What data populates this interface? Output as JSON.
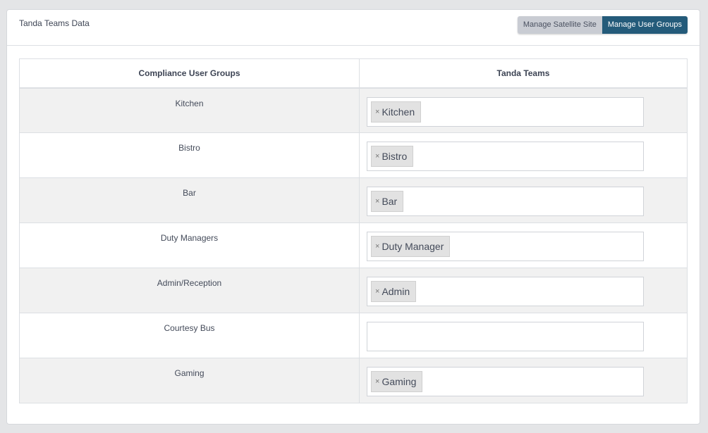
{
  "header": {
    "title": "Tanda Teams Data",
    "buttons": [
      {
        "label": "Manage Satellite Site",
        "active": false
      },
      {
        "label": "Manage User Groups",
        "active": true
      }
    ]
  },
  "colors": {
    "active_button": "#245b7a"
  },
  "table": {
    "columns": [
      "Compliance User Groups",
      "Tanda Teams"
    ],
    "rows": [
      {
        "group": "Kitchen",
        "teams": [
          "Kitchen"
        ]
      },
      {
        "group": "Bistro",
        "teams": [
          "Bistro"
        ]
      },
      {
        "group": "Bar",
        "teams": [
          "Bar"
        ]
      },
      {
        "group": "Duty Managers",
        "teams": [
          "Duty Manager"
        ]
      },
      {
        "group": "Admin/Reception",
        "teams": [
          "Admin"
        ]
      },
      {
        "group": "Courtesy Bus",
        "teams": []
      },
      {
        "group": "Gaming",
        "teams": [
          "Gaming"
        ]
      }
    ]
  },
  "icons": {
    "remove_tag": "×"
  }
}
